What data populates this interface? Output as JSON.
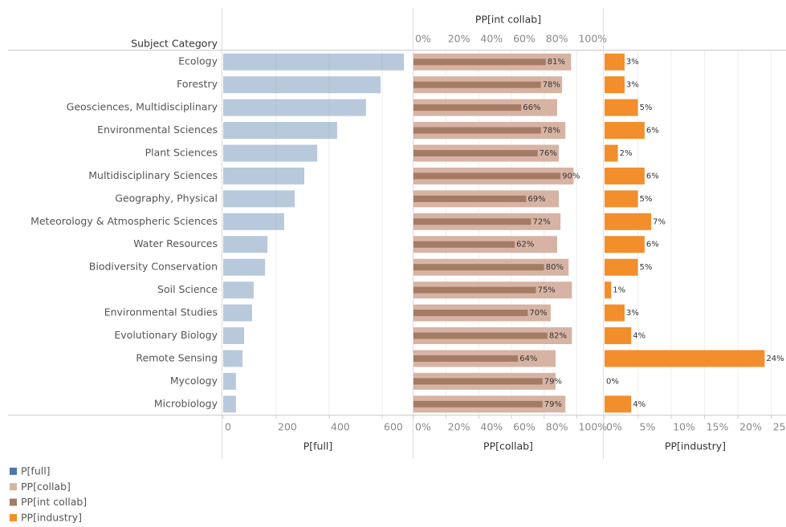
{
  "chart_data": {
    "type": "bar",
    "category_label": "Subject Category",
    "categories": [
      "Ecology",
      "Forestry",
      "Geosciences, Multidisciplinary",
      "Environmental Sciences",
      "Plant Sciences",
      "Multidisciplinary Sciences",
      "Geography, Physical",
      "Meteorology & Atmospheric Sciences",
      "Water Resources",
      "Biodiversity Conservation",
      "Soil Science",
      "Environmental Studies",
      "Evolutionary Biology",
      "Remote Sensing",
      "Mycology",
      "Microbiology"
    ],
    "panels": [
      {
        "xlabel": "P[full]",
        "xlim": [
          0,
          715
        ],
        "xticks": [
          0,
          200,
          400,
          600
        ],
        "series": [
          {
            "name": "P[full]",
            "color": "#4e79a7",
            "values": [
              682,
              594,
              539,
              430,
              355,
              306,
              270,
              230,
              167,
              158,
              115,
              109,
              79,
              73,
              48,
              48
            ]
          }
        ]
      },
      {
        "xlabel": "PP[collab]",
        "top_label": "PP[int collab]",
        "xlim": [
          0,
          116
        ],
        "xticks": [
          {
            "value": 0,
            "label": "0%"
          },
          {
            "value": 20,
            "label": "20%"
          },
          {
            "value": 40,
            "label": "40%"
          },
          {
            "value": 60,
            "label": "60%"
          },
          {
            "value": 80,
            "label": "80%"
          },
          {
            "value": 100,
            "label": "100%"
          }
        ],
        "series": [
          {
            "name": "PP[collab]",
            "color": "#d7b3a3",
            "values": [
              96.5,
              91,
              88,
              93,
              89,
              98,
              89,
              90,
              88,
              95,
              97,
              84,
              97,
              87,
              87,
              93
            ]
          },
          {
            "name": "PP[int collab]",
            "color": "#a47c65",
            "values": [
              81,
              78,
              66,
              78,
              76,
              90,
              69,
              72,
              62,
              80,
              75,
              70,
              82,
              64,
              79,
              79
            ],
            "value_labels": [
              "81%",
              "78%",
              "66%",
              "78%",
              "76%",
              "90%",
              "69%",
              "72%",
              "62%",
              "80%",
              "75%",
              "70%",
              "82%",
              "64%",
              "79%",
              "79%"
            ]
          }
        ]
      },
      {
        "xlabel": "PP[industry]",
        "xlim": [
          0,
          27.2
        ],
        "xticks": [
          {
            "value": 0,
            "label": "0%"
          },
          {
            "value": 5,
            "label": "5%"
          },
          {
            "value": 10,
            "label": "10%"
          },
          {
            "value": 15,
            "label": "15%"
          },
          {
            "value": 20,
            "label": "20%"
          },
          {
            "value": 25,
            "label": "25%"
          }
        ],
        "series": [
          {
            "name": "PP[industry]",
            "color": "#f28e2b",
            "values": [
              3,
              3,
              5,
              6,
              2,
              6,
              5,
              7,
              6,
              5,
              1,
              3,
              4,
              24,
              0,
              4
            ],
            "value_labels": [
              "3%",
              "3%",
              "5%",
              "6%",
              "2%",
              "6%",
              "5%",
              "7%",
              "6%",
              "5%",
              "1%",
              "3%",
              "4%",
              "24%",
              "0%",
              "4%"
            ]
          }
        ]
      }
    ]
  }
}
